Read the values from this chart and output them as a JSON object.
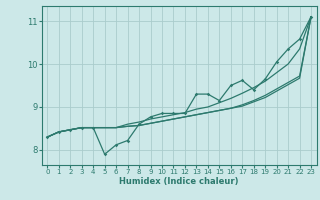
{
  "xlabel": "Humidex (Indice chaleur)",
  "bg_color": "#cce8e8",
  "grid_color": "#aacccc",
  "line_color": "#2d7a6e",
  "xlim": [
    -0.5,
    23.5
  ],
  "ylim": [
    7.65,
    11.35
  ],
  "xticks": [
    0,
    1,
    2,
    3,
    4,
    5,
    6,
    7,
    8,
    9,
    10,
    11,
    12,
    13,
    14,
    15,
    16,
    17,
    18,
    19,
    20,
    21,
    22,
    23
  ],
  "yticks": [
    8,
    9,
    10,
    11
  ],
  "line_marked": [
    8.3,
    8.42,
    8.47,
    8.52,
    8.52,
    7.9,
    8.12,
    8.22,
    8.6,
    8.77,
    8.85,
    8.85,
    8.85,
    9.3,
    9.3,
    9.15,
    9.5,
    9.62,
    9.4,
    9.65,
    10.05,
    10.35,
    10.58,
    11.1
  ],
  "line_smooth1": [
    8.3,
    8.42,
    8.47,
    8.52,
    8.52,
    8.52,
    8.52,
    8.6,
    8.65,
    8.72,
    8.77,
    8.82,
    8.87,
    8.95,
    9.0,
    9.1,
    9.2,
    9.32,
    9.45,
    9.6,
    9.8,
    10.0,
    10.35,
    11.1
  ],
  "line_smooth2": [
    8.3,
    8.42,
    8.47,
    8.52,
    8.52,
    8.52,
    8.52,
    8.55,
    8.57,
    8.62,
    8.67,
    8.72,
    8.77,
    8.82,
    8.87,
    8.92,
    8.97,
    9.05,
    9.15,
    9.27,
    9.42,
    9.57,
    9.72,
    11.1
  ],
  "line_smooth3": [
    8.3,
    8.42,
    8.47,
    8.52,
    8.52,
    8.52,
    8.52,
    8.55,
    8.57,
    8.62,
    8.67,
    8.72,
    8.77,
    8.82,
    8.87,
    8.92,
    8.97,
    9.02,
    9.12,
    9.22,
    9.37,
    9.52,
    9.67,
    11.1
  ]
}
